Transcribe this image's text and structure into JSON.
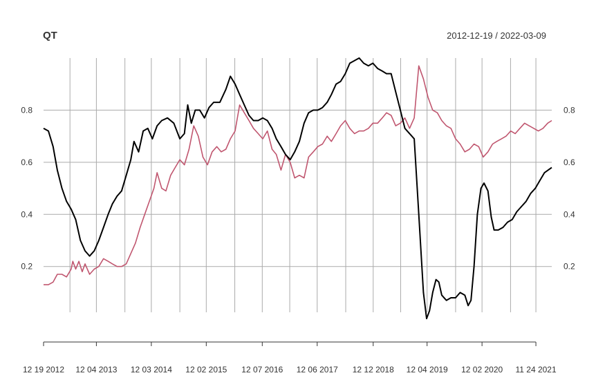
{
  "chart_data": {
    "type": "line",
    "title": "QT",
    "subtitle": "2012-12-19 / 2022-03-09",
    "date_range": [
      "2012-12-19",
      "2022-03-09"
    ],
    "xlim": [
      "2012-12-19",
      "2022-03-09"
    ],
    "ylim": [
      -0.05,
      1.0
    ],
    "grid": true,
    "y_ticks": [
      {
        "value": 0.2,
        "label": "0.2"
      },
      {
        "value": 0.4,
        "label": "0.4"
      },
      {
        "value": 0.6,
        "label": "0.6"
      },
      {
        "value": 0.8,
        "label": "0.8"
      }
    ],
    "x_ticks": [
      {
        "date": "2012-12-19",
        "label": "12 19 2012"
      },
      {
        "date": "2013-12-04",
        "label": "12 04 2013"
      },
      {
        "date": "2014-12-03",
        "label": "12 03 2014"
      },
      {
        "date": "2015-12-02",
        "label": "12 02 2015"
      },
      {
        "date": "2016-12-07",
        "label": "12 07 2016"
      },
      {
        "date": "2017-12-06",
        "label": "12 06 2017"
      },
      {
        "date": "2018-12-12",
        "label": "12 12 2018"
      },
      {
        "date": "2019-12-04",
        "label": "12 04 2019"
      },
      {
        "date": "2020-12-02",
        "label": "12 02 2020"
      },
      {
        "date": "2021-11-24",
        "label": "11 24 2021"
      }
    ],
    "x_minor_grid": [
      "2013-06-12",
      "2014-06-11",
      "2015-06-10",
      "2016-06-08",
      "2017-06-07",
      "2018-06-13",
      "2019-06-12",
      "2020-06-10",
      "2021-06-09"
    ],
    "series": [
      {
        "color": "#000000",
        "points": [
          [
            "2012-12-19",
            0.73
          ],
          [
            "2013-01-20",
            0.72
          ],
          [
            "2013-02-20",
            0.66
          ],
          [
            "2013-03-20",
            0.57
          ],
          [
            "2013-04-20",
            0.5
          ],
          [
            "2013-05-20",
            0.45
          ],
          [
            "2013-06-20",
            0.42
          ],
          [
            "2013-07-20",
            0.38
          ],
          [
            "2013-08-20",
            0.3
          ],
          [
            "2013-09-20",
            0.26
          ],
          [
            "2013-10-20",
            0.24
          ],
          [
            "2013-11-20",
            0.26
          ],
          [
            "2013-12-20",
            0.3
          ],
          [
            "2014-01-20",
            0.35
          ],
          [
            "2014-02-20",
            0.4
          ],
          [
            "2014-03-20",
            0.44
          ],
          [
            "2014-04-20",
            0.47
          ],
          [
            "2014-05-20",
            0.49
          ],
          [
            "2014-06-20",
            0.55
          ],
          [
            "2014-07-20",
            0.61
          ],
          [
            "2014-08-10",
            0.68
          ],
          [
            "2014-09-10",
            0.64
          ],
          [
            "2014-10-10",
            0.72
          ],
          [
            "2014-11-10",
            0.73
          ],
          [
            "2014-12-10",
            0.69
          ],
          [
            "2015-01-10",
            0.74
          ],
          [
            "2015-02-10",
            0.76
          ],
          [
            "2015-03-20",
            0.77
          ],
          [
            "2015-05-01",
            0.75
          ],
          [
            "2015-06-10",
            0.69
          ],
          [
            "2015-07-10",
            0.71
          ],
          [
            "2015-08-01",
            0.82
          ],
          [
            "2015-08-25",
            0.75
          ],
          [
            "2015-09-20",
            0.8
          ],
          [
            "2015-10-20",
            0.8
          ],
          [
            "2015-11-20",
            0.77
          ],
          [
            "2015-12-20",
            0.81
          ],
          [
            "2016-01-20",
            0.83
          ],
          [
            "2016-03-01",
            0.83
          ],
          [
            "2016-04-10",
            0.88
          ],
          [
            "2016-05-10",
            0.93
          ],
          [
            "2016-06-10",
            0.9
          ],
          [
            "2016-07-10",
            0.86
          ],
          [
            "2016-08-10",
            0.82
          ],
          [
            "2016-09-10",
            0.78
          ],
          [
            "2016-10-10",
            0.76
          ],
          [
            "2016-11-10",
            0.76
          ],
          [
            "2016-12-10",
            0.77
          ],
          [
            "2017-01-10",
            0.76
          ],
          [
            "2017-02-10",
            0.73
          ],
          [
            "2017-03-10",
            0.69
          ],
          [
            "2017-04-10",
            0.66
          ],
          [
            "2017-05-10",
            0.63
          ],
          [
            "2017-06-10",
            0.61
          ],
          [
            "2017-07-10",
            0.64
          ],
          [
            "2017-08-10",
            0.68
          ],
          [
            "2017-09-10",
            0.75
          ],
          [
            "2017-10-10",
            0.79
          ],
          [
            "2017-11-10",
            0.8
          ],
          [
            "2017-12-10",
            0.8
          ],
          [
            "2018-01-10",
            0.81
          ],
          [
            "2018-02-10",
            0.83
          ],
          [
            "2018-03-10",
            0.86
          ],
          [
            "2018-04-10",
            0.9
          ],
          [
            "2018-05-10",
            0.91
          ],
          [
            "2018-06-10",
            0.94
          ],
          [
            "2018-07-10",
            0.98
          ],
          [
            "2018-08-10",
            0.99
          ],
          [
            "2018-09-10",
            1.0
          ],
          [
            "2018-10-10",
            0.98
          ],
          [
            "2018-11-10",
            0.97
          ],
          [
            "2018-12-10",
            0.98
          ],
          [
            "2019-01-10",
            0.96
          ],
          [
            "2019-02-10",
            0.95
          ],
          [
            "2019-03-10",
            0.94
          ],
          [
            "2019-04-10",
            0.94
          ],
          [
            "2019-05-10",
            0.87
          ],
          [
            "2019-06-10",
            0.8
          ],
          [
            "2019-07-10",
            0.73
          ],
          [
            "2019-08-10",
            0.71
          ],
          [
            "2019-09-10",
            0.69
          ],
          [
            "2019-10-10",
            0.4
          ],
          [
            "2019-11-10",
            0.1
          ],
          [
            "2019-12-01",
            0.0
          ],
          [
            "2019-12-20",
            0.03
          ],
          [
            "2020-01-10",
            0.1
          ],
          [
            "2020-02-01",
            0.15
          ],
          [
            "2020-02-20",
            0.14
          ],
          [
            "2020-03-10",
            0.09
          ],
          [
            "2020-04-10",
            0.07
          ],
          [
            "2020-05-10",
            0.08
          ],
          [
            "2020-06-10",
            0.08
          ],
          [
            "2020-07-10",
            0.1
          ],
          [
            "2020-08-10",
            0.09
          ],
          [
            "2020-09-01",
            0.05
          ],
          [
            "2020-09-20",
            0.07
          ],
          [
            "2020-10-10",
            0.2
          ],
          [
            "2020-11-01",
            0.4
          ],
          [
            "2020-11-25",
            0.5
          ],
          [
            "2020-12-15",
            0.52
          ],
          [
            "2021-01-10",
            0.49
          ],
          [
            "2021-02-01",
            0.39
          ],
          [
            "2021-02-20",
            0.34
          ],
          [
            "2021-03-20",
            0.34
          ],
          [
            "2021-04-20",
            0.35
          ],
          [
            "2021-05-20",
            0.37
          ],
          [
            "2021-06-20",
            0.38
          ],
          [
            "2021-07-20",
            0.41
          ],
          [
            "2021-08-20",
            0.43
          ],
          [
            "2021-09-20",
            0.45
          ],
          [
            "2021-10-20",
            0.48
          ],
          [
            "2021-11-20",
            0.5
          ],
          [
            "2021-12-20",
            0.53
          ],
          [
            "2022-01-20",
            0.56
          ],
          [
            "2022-03-09",
            0.58
          ]
        ]
      },
      {
        "color": "#c0566f",
        "points": [
          [
            "2012-12-19",
            0.13
          ],
          [
            "2013-01-20",
            0.13
          ],
          [
            "2013-02-20",
            0.14
          ],
          [
            "2013-03-20",
            0.17
          ],
          [
            "2013-04-20",
            0.17
          ],
          [
            "2013-05-20",
            0.16
          ],
          [
            "2013-06-20",
            0.19
          ],
          [
            "2013-07-01",
            0.22
          ],
          [
            "2013-07-20",
            0.19
          ],
          [
            "2013-08-10",
            0.22
          ],
          [
            "2013-09-01",
            0.18
          ],
          [
            "2013-09-20",
            0.21
          ],
          [
            "2013-10-20",
            0.17
          ],
          [
            "2013-11-20",
            0.19
          ],
          [
            "2013-12-20",
            0.2
          ],
          [
            "2014-01-20",
            0.23
          ],
          [
            "2014-02-20",
            0.22
          ],
          [
            "2014-03-20",
            0.21
          ],
          [
            "2014-04-20",
            0.2
          ],
          [
            "2014-05-20",
            0.2
          ],
          [
            "2014-06-20",
            0.21
          ],
          [
            "2014-07-20",
            0.25
          ],
          [
            "2014-08-20",
            0.29
          ],
          [
            "2014-09-20",
            0.35
          ],
          [
            "2014-10-20",
            0.4
          ],
          [
            "2014-11-20",
            0.45
          ],
          [
            "2014-12-20",
            0.5
          ],
          [
            "2015-01-10",
            0.56
          ],
          [
            "2015-02-10",
            0.5
          ],
          [
            "2015-03-10",
            0.49
          ],
          [
            "2015-04-10",
            0.55
          ],
          [
            "2015-05-10",
            0.58
          ],
          [
            "2015-06-10",
            0.61
          ],
          [
            "2015-07-10",
            0.59
          ],
          [
            "2015-08-10",
            0.65
          ],
          [
            "2015-09-10",
            0.74
          ],
          [
            "2015-10-10",
            0.7
          ],
          [
            "2015-11-10",
            0.62
          ],
          [
            "2015-12-10",
            0.59
          ],
          [
            "2016-01-10",
            0.64
          ],
          [
            "2016-02-10",
            0.66
          ],
          [
            "2016-03-10",
            0.64
          ],
          [
            "2016-04-10",
            0.65
          ],
          [
            "2016-05-10",
            0.69
          ],
          [
            "2016-06-10",
            0.72
          ],
          [
            "2016-07-10",
            0.82
          ],
          [
            "2016-08-10",
            0.79
          ],
          [
            "2016-09-10",
            0.76
          ],
          [
            "2016-10-10",
            0.73
          ],
          [
            "2016-11-10",
            0.71
          ],
          [
            "2016-12-10",
            0.69
          ],
          [
            "2017-01-10",
            0.72
          ],
          [
            "2017-02-10",
            0.65
          ],
          [
            "2017-03-10",
            0.63
          ],
          [
            "2017-04-10",
            0.57
          ],
          [
            "2017-05-10",
            0.63
          ],
          [
            "2017-06-10",
            0.6
          ],
          [
            "2017-07-10",
            0.54
          ],
          [
            "2017-08-10",
            0.55
          ],
          [
            "2017-09-10",
            0.54
          ],
          [
            "2017-10-10",
            0.62
          ],
          [
            "2017-11-10",
            0.64
          ],
          [
            "2017-12-10",
            0.66
          ],
          [
            "2018-01-10",
            0.67
          ],
          [
            "2018-02-10",
            0.7
          ],
          [
            "2018-03-10",
            0.68
          ],
          [
            "2018-04-10",
            0.71
          ],
          [
            "2018-05-10",
            0.74
          ],
          [
            "2018-06-10",
            0.76
          ],
          [
            "2018-07-10",
            0.73
          ],
          [
            "2018-08-10",
            0.71
          ],
          [
            "2018-09-10",
            0.72
          ],
          [
            "2018-10-10",
            0.72
          ],
          [
            "2018-11-10",
            0.73
          ],
          [
            "2018-12-10",
            0.75
          ],
          [
            "2019-01-10",
            0.75
          ],
          [
            "2019-02-10",
            0.77
          ],
          [
            "2019-03-10",
            0.79
          ],
          [
            "2019-04-10",
            0.78
          ],
          [
            "2019-05-10",
            0.74
          ],
          [
            "2019-06-10",
            0.75
          ],
          [
            "2019-07-10",
            0.77
          ],
          [
            "2019-08-10",
            0.73
          ],
          [
            "2019-09-10",
            0.77
          ],
          [
            "2019-10-10",
            0.97
          ],
          [
            "2019-11-10",
            0.92
          ],
          [
            "2019-12-10",
            0.85
          ],
          [
            "2020-01-10",
            0.8
          ],
          [
            "2020-02-10",
            0.79
          ],
          [
            "2020-03-10",
            0.76
          ],
          [
            "2020-04-10",
            0.74
          ],
          [
            "2020-05-10",
            0.73
          ],
          [
            "2020-06-10",
            0.69
          ],
          [
            "2020-07-10",
            0.67
          ],
          [
            "2020-08-10",
            0.64
          ],
          [
            "2020-09-10",
            0.65
          ],
          [
            "2020-10-10",
            0.67
          ],
          [
            "2020-11-10",
            0.66
          ],
          [
            "2020-12-10",
            0.62
          ],
          [
            "2021-01-10",
            0.64
          ],
          [
            "2021-02-10",
            0.67
          ],
          [
            "2021-03-10",
            0.68
          ],
          [
            "2021-04-10",
            0.69
          ],
          [
            "2021-05-10",
            0.7
          ],
          [
            "2021-06-10",
            0.72
          ],
          [
            "2021-07-10",
            0.71
          ],
          [
            "2021-08-10",
            0.73
          ],
          [
            "2021-09-10",
            0.75
          ],
          [
            "2021-10-10",
            0.74
          ],
          [
            "2021-11-10",
            0.73
          ],
          [
            "2021-12-10",
            0.72
          ],
          [
            "2022-01-10",
            0.73
          ],
          [
            "2022-02-10",
            0.75
          ],
          [
            "2022-03-09",
            0.76
          ]
        ]
      }
    ]
  }
}
